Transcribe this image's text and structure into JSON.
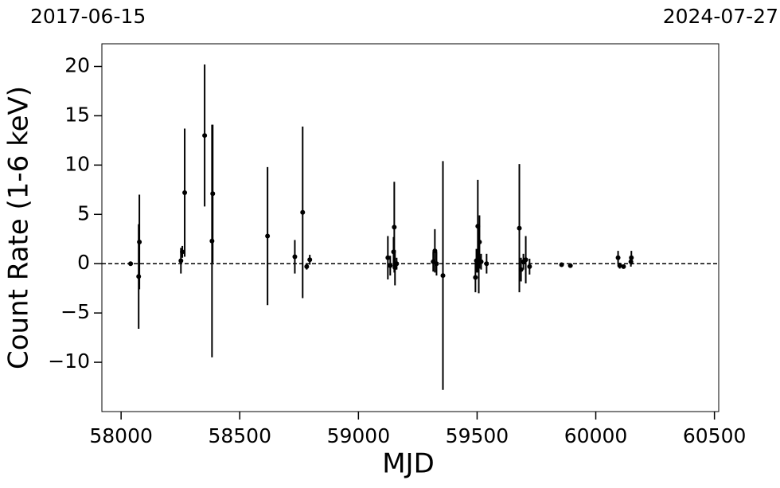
{
  "chart_data": {
    "type": "scatter",
    "date_labels": [
      "2017-06-15",
      "2024-07-27"
    ],
    "xlabel": "MJD",
    "ylabel": "Count Rate (1-6 keV)",
    "color": "#000000",
    "reference_line": 0,
    "xlim": [
      57919,
      60518
    ],
    "xticks": [
      58000,
      58500,
      59000,
      59500,
      60000,
      60500
    ],
    "ylim": [
      -15,
      22.3
    ],
    "yticks": [
      {
        "value": -10,
        "label": "−10"
      },
      {
        "value": -5,
        "label": "−5"
      },
      0,
      5,
      10,
      15,
      20
    ],
    "x": [
      58040,
      58074,
      58077,
      58252,
      58258,
      58268,
      58352,
      58383,
      58386,
      58617,
      58732,
      58765,
      58782,
      58795,
      59124,
      59134,
      59148,
      59151,
      59154,
      59161,
      59315,
      59322,
      59329,
      59356,
      59493,
      59497,
      59503,
      59507,
      59510,
      59517,
      59540,
      59678,
      59685,
      59695,
      59705,
      59721,
      59856,
      59893,
      60094,
      60101,
      60117,
      60148,
      60150
    ],
    "values": [
      0,
      -1.3,
      2.2,
      0.3,
      1.2,
      7.2,
      13,
      2.3,
      7.1,
      2.8,
      0.7,
      5.2,
      -0.3,
      0.4,
      0.6,
      -0.2,
      1.2,
      3.7,
      -0.4,
      0,
      0.2,
      1.3,
      0,
      -1.2,
      -1.4,
      0.3,
      3.8,
      0.5,
      2.2,
      0.2,
      0,
      3.6,
      -0.6,
      0.2,
      0.4,
      -0.3,
      -0.1,
      -0.2,
      0.6,
      -0.2,
      -0.3,
      0.2,
      0.6
    ],
    "yerr": [
      0.1,
      5.3,
      4.8,
      1.3,
      0.6,
      6.5,
      7.2,
      11.8,
      7.0,
      7.0,
      1.7,
      8.7,
      0.3,
      0.5,
      2.2,
      1,
      1.5,
      4.6,
      1.8,
      0.6,
      1,
      2.2,
      1.2,
      11.6,
      1.5,
      1.2,
      4.7,
      3.5,
      2.7,
      0.8,
      1,
      6.5,
      1.2,
      0.8,
      2.4,
      0.8,
      0.2,
      0.2,
      0.7,
      0.3,
      0.2,
      0.5,
      0.7
    ]
  }
}
